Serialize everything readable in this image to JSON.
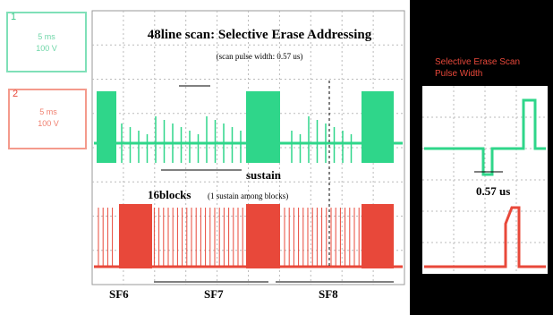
{
  "scope": {
    "title": "48line scan: Selective Erase Addressing",
    "subtitle": "(scan pulse width: 0.57 us)",
    "annotations": {
      "sustain": "sustain",
      "blocks": "16blocks",
      "blocks_note": "(1 sustain among blocks)"
    },
    "subfields": [
      "SF6",
      "SF7",
      "SF8"
    ]
  },
  "channels": [
    {
      "number": "1",
      "time": "5 ms",
      "volts": "100 V"
    },
    {
      "number": "2",
      "time": "5 ms",
      "volts": "100 V"
    }
  ],
  "inset": {
    "title": "Selective Erase Scan Pulse Width",
    "measurement": "0.57 us"
  }
}
